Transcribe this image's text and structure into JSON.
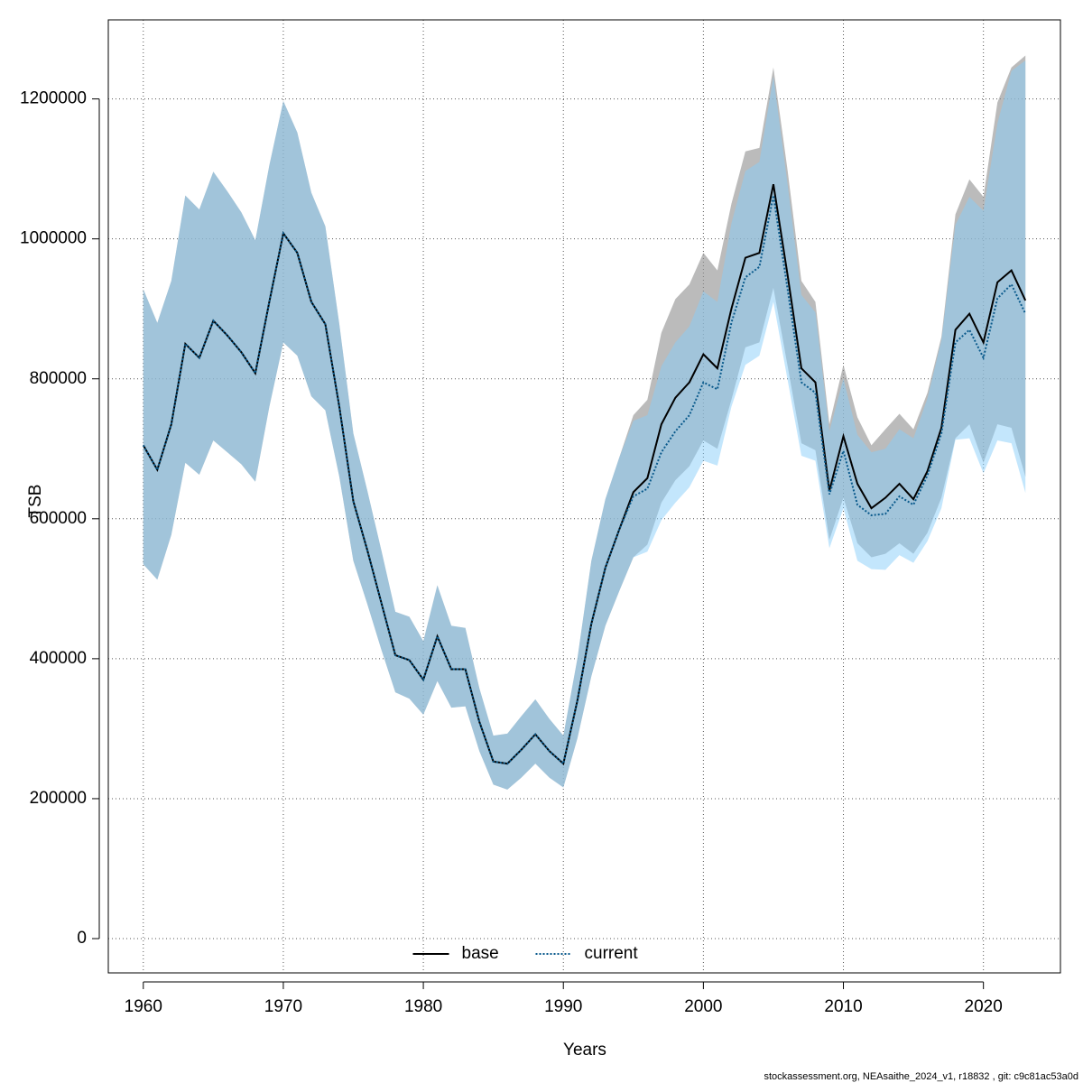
{
  "chart_data": {
    "type": "line",
    "x_label": "Years",
    "y_label": "TSB",
    "footnote": "stockassessment.org, NEAsaithe_2024_v1, r18832 , git: c9c81ac53a0d",
    "x": [
      1960,
      1961,
      1962,
      1963,
      1964,
      1965,
      1966,
      1967,
      1968,
      1969,
      1970,
      1971,
      1972,
      1973,
      1974,
      1975,
      1976,
      1977,
      1978,
      1979,
      1980,
      1981,
      1982,
      1983,
      1984,
      1985,
      1986,
      1987,
      1988,
      1989,
      1990,
      1991,
      1992,
      1993,
      1994,
      1995,
      1996,
      1997,
      1998,
      1999,
      2000,
      2001,
      2002,
      2003,
      2004,
      2005,
      2006,
      2007,
      2008,
      2009,
      2010,
      2011,
      2012,
      2013,
      2014,
      2015,
      2016,
      2017,
      2018,
      2019,
      2020,
      2021,
      2022,
      2023
    ],
    "xlim": [
      1957.5,
      2025.5
    ],
    "xticks": [
      1960,
      1970,
      1980,
      1990,
      2000,
      2010,
      2020
    ],
    "ylim": [
      -49000,
      1313000
    ],
    "yticks": [
      0,
      200000,
      400000,
      600000,
      800000,
      1000000,
      1200000
    ],
    "grid": true,
    "legend_position": "bottom",
    "series": [
      {
        "name": "base",
        "color": "#000000",
        "linestyle": "solid",
        "band_color": "rgba(150,150,150,0.65)",
        "values": [
          705000,
          670000,
          735000,
          850000,
          830000,
          883000,
          862000,
          838000,
          808000,
          910000,
          1008000,
          980000,
          910000,
          878000,
          760000,
          625000,
          555000,
          480000,
          405000,
          398000,
          370000,
          432000,
          385000,
          385000,
          310000,
          253000,
          250000,
          270000,
          292000,
          268000,
          250000,
          340000,
          450000,
          530000,
          585000,
          638000,
          658000,
          735000,
          773000,
          795000,
          835000,
          815000,
          900000,
          973000,
          980000,
          1078000,
          950000,
          815000,
          795000,
          640000,
          718000,
          650000,
          615000,
          630000,
          650000,
          628000,
          668000,
          730000,
          870000,
          893000,
          852000,
          938000,
          955000,
          912000
        ],
        "upper": [
          928000,
          880000,
          940000,
          1062000,
          1042000,
          1096000,
          1068000,
          1038000,
          998000,
          1105000,
          1197000,
          1152000,
          1066000,
          1018000,
          878000,
          722000,
          640000,
          555000,
          467000,
          460000,
          425000,
          505000,
          447000,
          444000,
          358000,
          290000,
          293000,
          318000,
          342000,
          314000,
          290000,
          400000,
          540000,
          628000,
          688000,
          748000,
          770000,
          866000,
          914000,
          935000,
          980000,
          955000,
          1050000,
          1125000,
          1130000,
          1245000,
          1100000,
          940000,
          910000,
          735000,
          820000,
          745000,
          705000,
          728000,
          750000,
          728000,
          780000,
          860000,
          1035000,
          1085000,
          1060000,
          1195000,
          1245000,
          1262000
        ],
        "lower": [
          535000,
          513000,
          577000,
          680000,
          663000,
          712000,
          695000,
          678000,
          653000,
          760000,
          852000,
          833000,
          775000,
          755000,
          660000,
          540000,
          478000,
          413000,
          352000,
          343000,
          320000,
          368000,
          330000,
          332000,
          268000,
          220000,
          213000,
          230000,
          250000,
          230000,
          216000,
          286000,
          375000,
          447000,
          497000,
          545000,
          563000,
          623000,
          655000,
          675000,
          712000,
          700000,
          770000,
          845000,
          852000,
          930000,
          820000,
          708000,
          698000,
          570000,
          630000,
          565000,
          545000,
          550000,
          565000,
          550000,
          580000,
          630000,
          715000,
          735000,
          680000,
          735000,
          730000,
          660000
        ]
      },
      {
        "name": "current",
        "color": "#0a5a8c",
        "linestyle": "dotted",
        "band_color": "rgba(135,206,250,0.5)",
        "values": [
          705000,
          670000,
          735000,
          850000,
          830000,
          883000,
          862000,
          838000,
          808000,
          910000,
          1008000,
          980000,
          910000,
          878000,
          760000,
          625000,
          555000,
          480000,
          405000,
          398000,
          370000,
          432000,
          385000,
          385000,
          310000,
          253000,
          250000,
          270000,
          292000,
          268000,
          250000,
          340000,
          450000,
          530000,
          585000,
          632000,
          643000,
          695000,
          725000,
          748000,
          795000,
          785000,
          880000,
          945000,
          960000,
          1062000,
          930000,
          795000,
          780000,
          635000,
          697000,
          620000,
          605000,
          607000,
          632000,
          620000,
          662000,
          722000,
          852000,
          870000,
          830000,
          915000,
          935000,
          893000
        ],
        "upper": [
          928000,
          880000,
          940000,
          1062000,
          1042000,
          1096000,
          1068000,
          1038000,
          998000,
          1105000,
          1197000,
          1152000,
          1066000,
          1018000,
          878000,
          722000,
          640000,
          555000,
          467000,
          460000,
          425000,
          505000,
          447000,
          444000,
          358000,
          290000,
          293000,
          318000,
          342000,
          314000,
          290000,
          400000,
          540000,
          628000,
          688000,
          740000,
          748000,
          818000,
          852000,
          875000,
          925000,
          910000,
          1022000,
          1097000,
          1110000,
          1232000,
          1080000,
          920000,
          895000,
          725000,
          800000,
          720000,
          695000,
          700000,
          728000,
          715000,
          772000,
          855000,
          1020000,
          1060000,
          1040000,
          1165000,
          1240000,
          1255000
        ],
        "lower": [
          535000,
          513000,
          577000,
          680000,
          663000,
          712000,
          695000,
          678000,
          653000,
          760000,
          852000,
          833000,
          775000,
          755000,
          660000,
          540000,
          478000,
          413000,
          352000,
          343000,
          320000,
          368000,
          330000,
          332000,
          268000,
          220000,
          213000,
          230000,
          250000,
          230000,
          216000,
          286000,
          375000,
          447000,
          497000,
          545000,
          553000,
          598000,
          623000,
          645000,
          683000,
          676000,
          760000,
          820000,
          833000,
          910000,
          800000,
          690000,
          683000,
          558000,
          615000,
          540000,
          528000,
          527000,
          548000,
          537000,
          568000,
          615000,
          713000,
          715000,
          665000,
          712000,
          708000,
          637000
        ]
      }
    ]
  }
}
